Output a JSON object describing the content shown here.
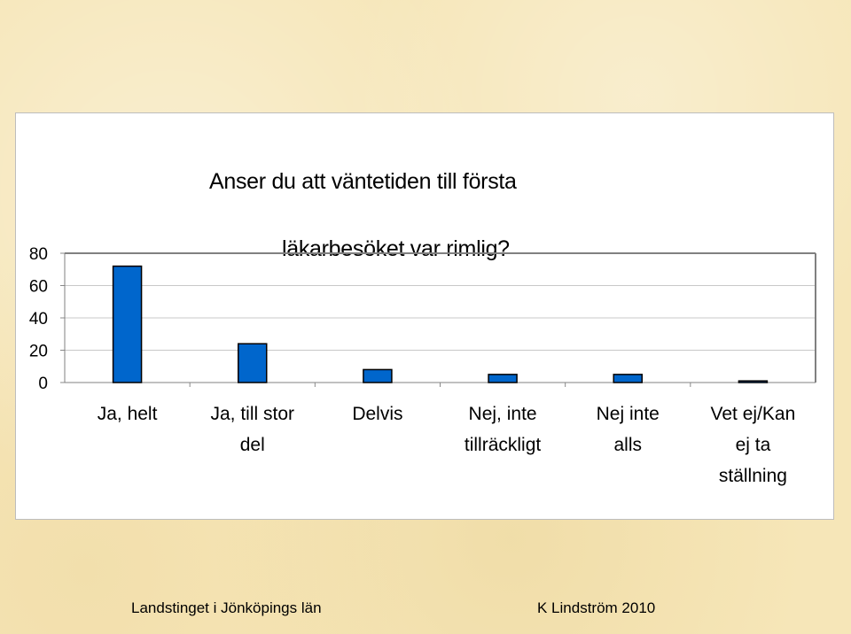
{
  "chart_data": {
    "type": "bar",
    "title_lines": [
      "Anser du att väntetiden till första",
      "läkarbesöket var rimlig?"
    ],
    "categories": [
      [
        "Ja, helt"
      ],
      [
        "Ja, till stor",
        "del"
      ],
      [
        "Delvis"
      ],
      [
        "Nej, inte",
        "tillräckligt"
      ],
      [
        "Nej inte",
        "alls"
      ],
      [
        "Vet ej/Kan",
        "ej ta",
        "ställning"
      ]
    ],
    "values": [
      72,
      24,
      8,
      5,
      5,
      1
    ],
    "ylim": [
      0,
      80
    ],
    "yticks": [
      "0",
      "20",
      "40",
      "60",
      "80"
    ],
    "ytick_values": [
      0,
      20,
      40,
      60,
      80
    ],
    "grid": true,
    "bar_color": "#0066cc",
    "xlabel": "",
    "ylabel": ""
  },
  "footer": {
    "left": "Landstinget i Jönköpings län",
    "right": "K Lindström 2010"
  }
}
